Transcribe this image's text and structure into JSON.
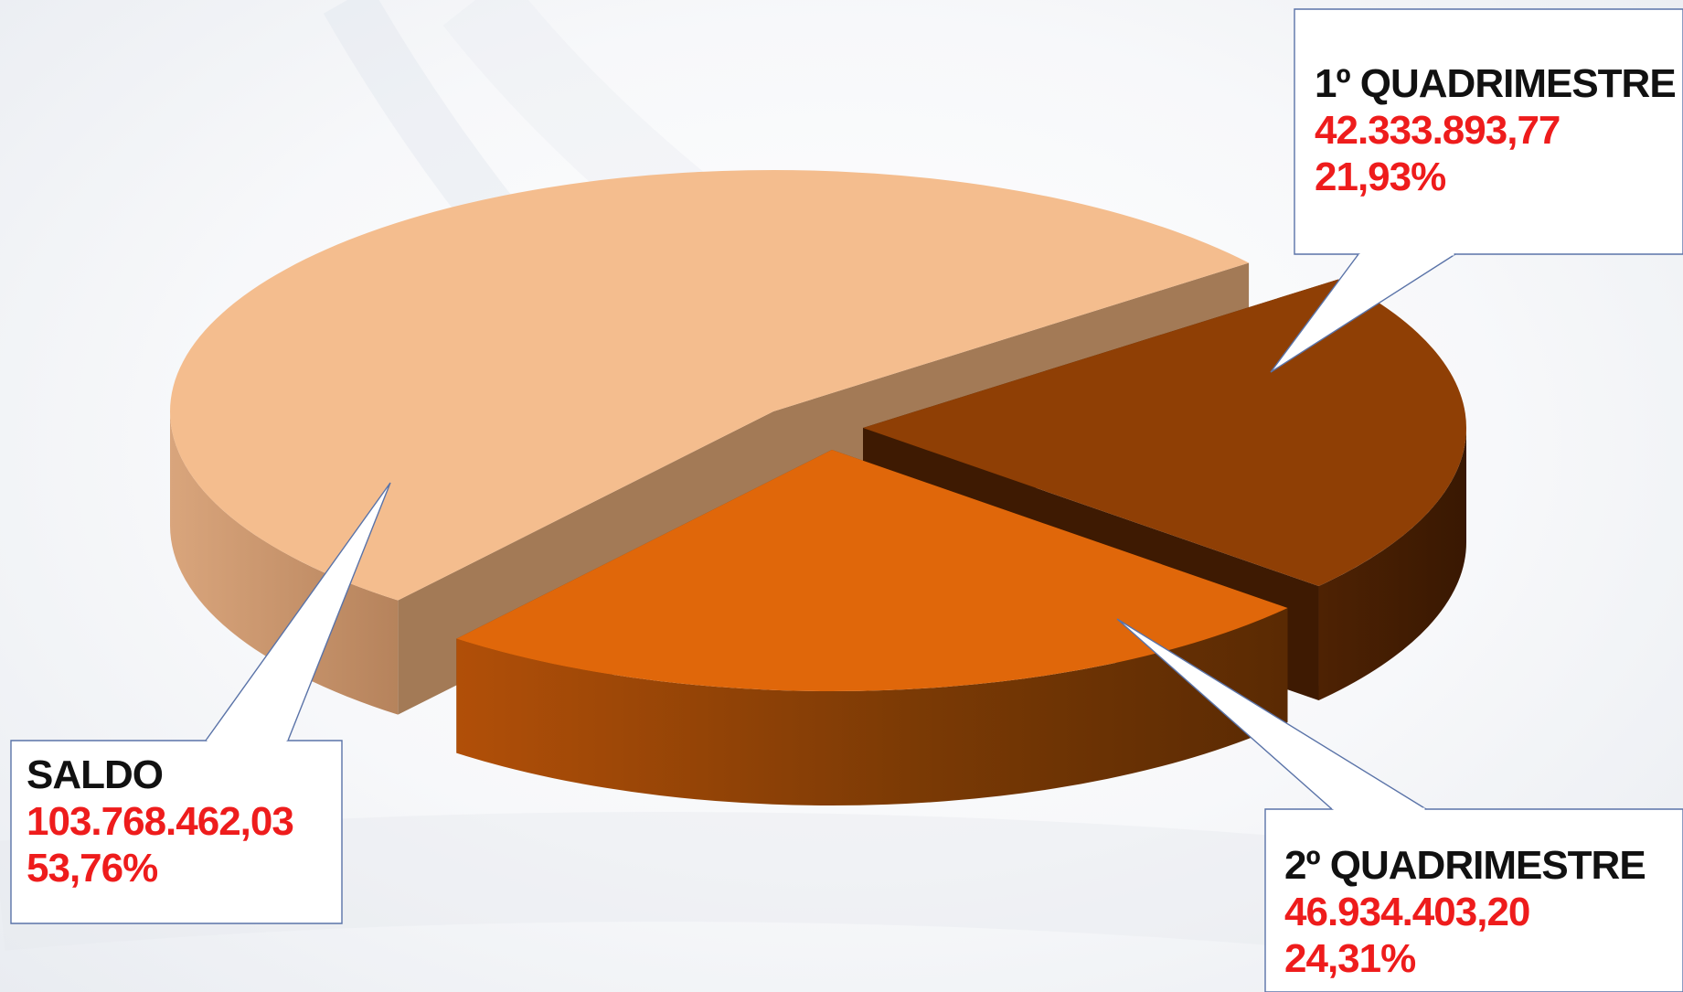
{
  "chart_data": {
    "type": "pie",
    "title": "",
    "categories": [
      "1º QUADRIMESTRE",
      "2º QUADRIMESTRE",
      "SALDO"
    ],
    "values": [
      42333893.77,
      46934403.2,
      103768462.03
    ],
    "value_labels": [
      "42.333.893,77",
      "46.934.403,20",
      "103.768.462,03"
    ],
    "percent_labels": [
      "21,93%",
      "24,31%",
      "53,76%"
    ],
    "colors": [
      "#8f3f05",
      "#e0670a",
      "#f4bd8e"
    ],
    "legend": "none"
  }
}
